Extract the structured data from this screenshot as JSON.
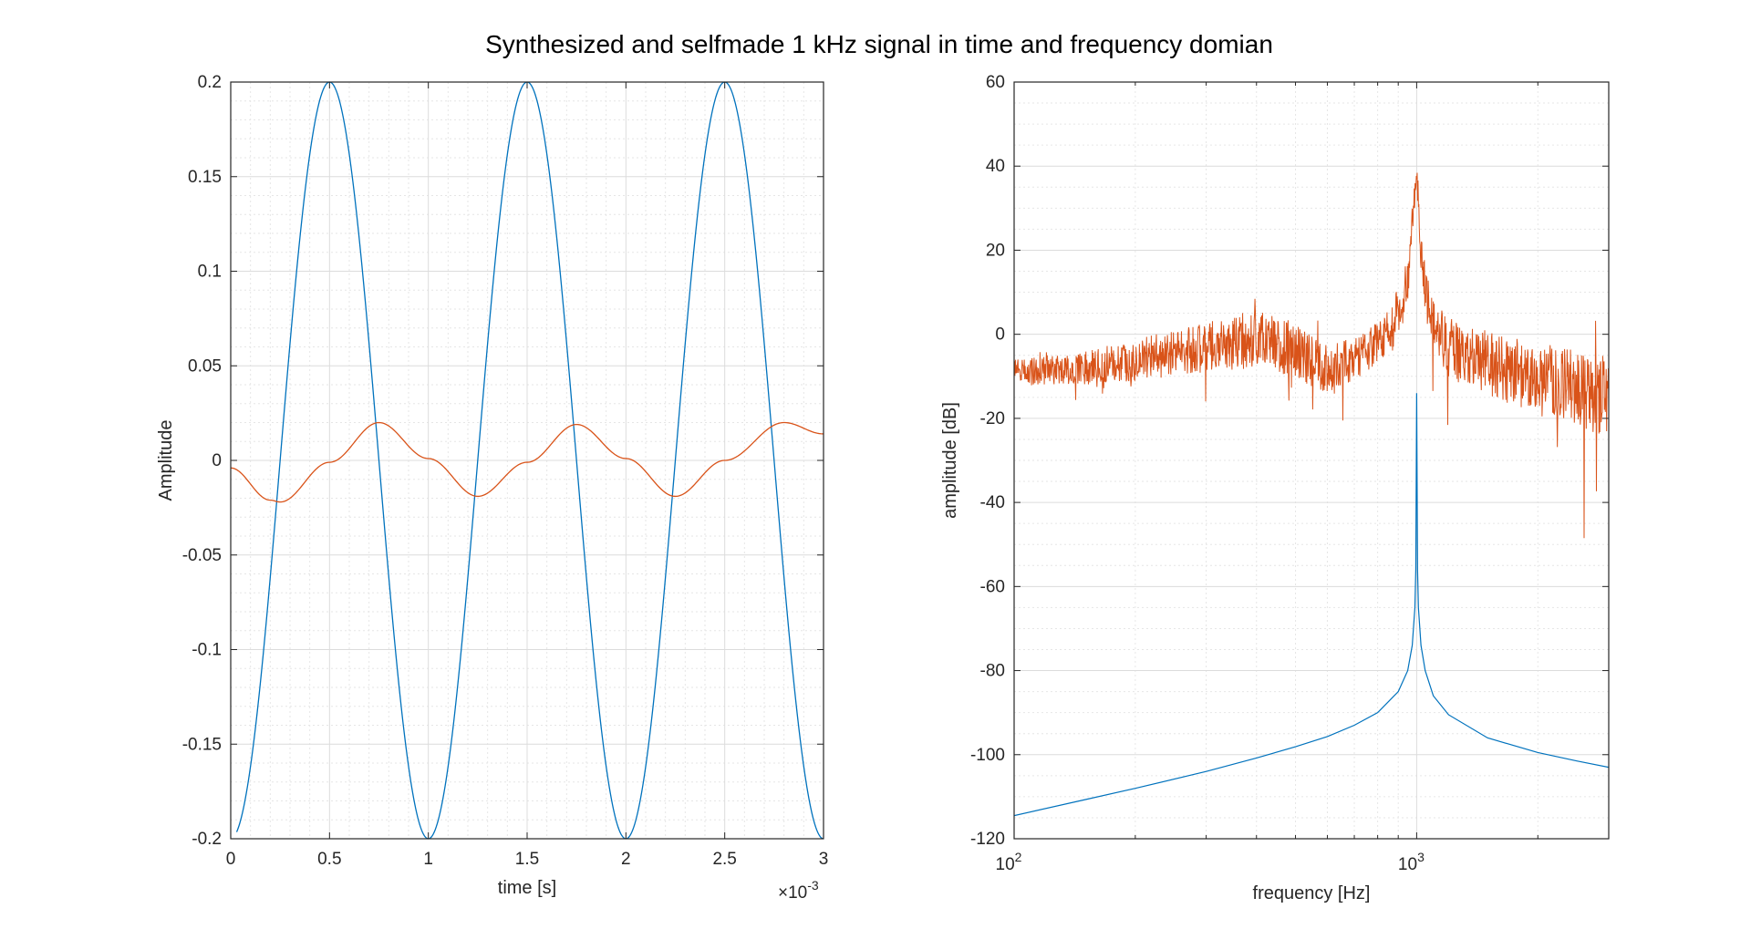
{
  "figure": {
    "title": "Synthesized and selfmade 1 kHz signal in time and frequency domian"
  },
  "chart_data": [
    {
      "type": "line",
      "title": "",
      "xlabel": "time [s]",
      "ylabel": "Amplitude",
      "x_exponent_label": "×10",
      "x_exponent": "-3",
      "xlim": [
        0,
        0.003
      ],
      "ylim": [
        -0.2,
        0.2
      ],
      "grid": true,
      "minor_grid": true,
      "x_ticks": [
        0,
        0.0005,
        0.001,
        0.0015,
        0.002,
        0.0025,
        0.003
      ],
      "x_tick_labels": [
        "0",
        "0.5",
        "1",
        "1.5",
        "2",
        "2.5",
        "3"
      ],
      "y_ticks": [
        -0.2,
        -0.15,
        -0.1,
        -0.05,
        0,
        0.05,
        0.1,
        0.15,
        0.2
      ],
      "y_tick_labels": [
        "-0.2",
        "-0.15",
        "-0.1",
        "-0.05",
        "0",
        "0.05",
        "0.1",
        "0.15",
        "0.2"
      ],
      "series": [
        {
          "color": "#0072BD",
          "model": "sine",
          "amplitude": 0.2,
          "frequency_hz": 1000,
          "phase_rad": -1.5708,
          "x_start": 3e-05,
          "x_end": 0.003
        },
        {
          "color": "#D95319",
          "x": [
            0,
            0.0002,
            0.00025,
            0.0005,
            0.00075,
            0.001,
            0.00125,
            0.0015,
            0.00175,
            0.002,
            0.00225,
            0.0025,
            0.0028,
            0.003
          ],
          "y": [
            -0.004,
            -0.021,
            -0.022,
            -0.001,
            0.02,
            0.001,
            -0.019,
            -0.001,
            0.019,
            0.001,
            -0.019,
            0,
            0.02,
            0.014
          ]
        }
      ]
    },
    {
      "type": "line",
      "title": "",
      "xlabel": "frequency [Hz]",
      "ylabel": "amplitude [dB]",
      "xscale": "log",
      "xlim": [
        100,
        3000
      ],
      "ylim": [
        -120,
        60
      ],
      "grid": true,
      "minor_grid": true,
      "x_ticks": [
        100,
        1000
      ],
      "x_tick_bases": [
        "10",
        "10"
      ],
      "x_tick_exponents": [
        "2",
        "3"
      ],
      "y_ticks": [
        -120,
        -100,
        -80,
        -60,
        -40,
        -20,
        0,
        20,
        40,
        60
      ],
      "y_tick_labels": [
        "-120",
        "-100",
        "-80",
        "-60",
        "-40",
        "-20",
        "0",
        "20",
        "40",
        "60"
      ],
      "series": [
        {
          "color": "#0072BD",
          "x": [
            100,
            150,
            200,
            300,
            400,
            500,
            600,
            700,
            800,
            900,
            950,
            975,
            990,
            995,
            1000,
            1005,
            1010,
            1025,
            1050,
            1100,
            1200,
            1500,
            2000,
            2500,
            3000
          ],
          "y": [
            -114.5,
            -110.7,
            -108,
            -104,
            -100.8,
            -98.1,
            -95.7,
            -93,
            -90,
            -85,
            -80,
            -74,
            -65,
            -56,
            -14,
            -56,
            -65,
            -74,
            -80,
            -86,
            -90.5,
            -96,
            -99.5,
            -101.5,
            -103
          ]
        },
        {
          "color": "#D95319",
          "model": "noise",
          "seed": 7,
          "x_start": 100,
          "x_end": 3000,
          "samples": 1400,
          "envelope_x": [
            100,
            150,
            200,
            300,
            400,
            500,
            600,
            700,
            800,
            900,
            950,
            980,
            1000,
            1020,
            1050,
            1100,
            1200,
            1500,
            2000,
            2500,
            3000
          ],
          "envelope_y": [
            -9,
            -8,
            -6,
            -3,
            -1,
            -4,
            -8,
            -6,
            -2,
            5,
            12,
            30,
            40,
            22,
            10,
            2,
            -3,
            -7,
            -10,
            -13,
            -15
          ],
          "noise_amplitude": [
            3,
            4,
            5,
            6,
            7,
            7,
            6,
            5,
            5,
            6,
            6,
            5,
            3,
            5,
            6,
            6,
            7,
            8,
            8,
            9,
            10
          ],
          "minimum": -48.5
        }
      ]
    }
  ]
}
